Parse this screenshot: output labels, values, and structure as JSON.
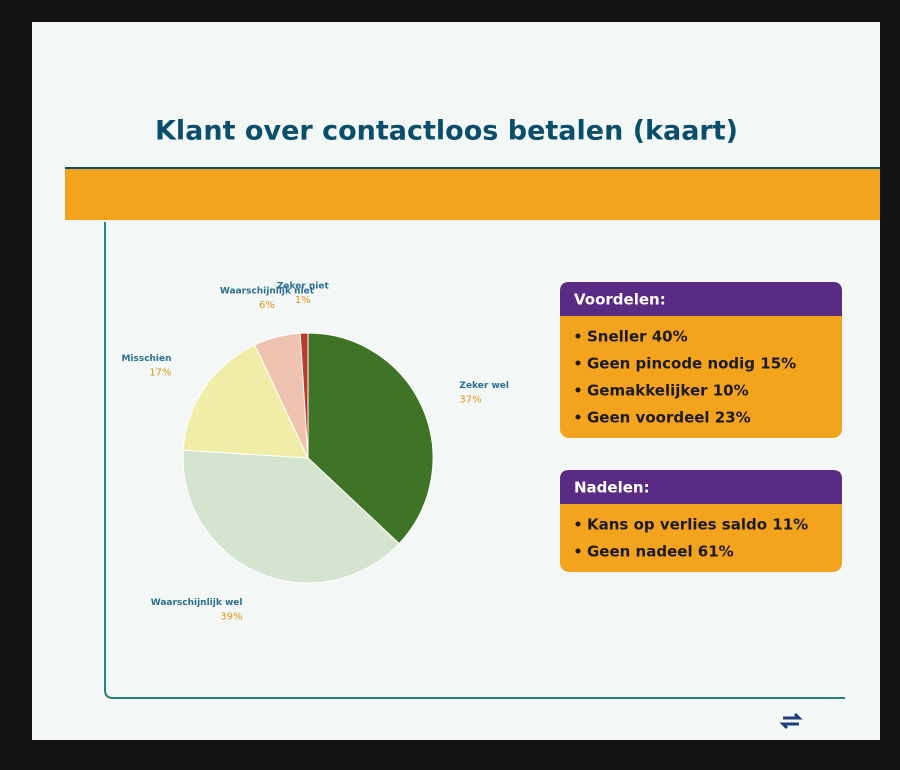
{
  "chart_data": {
    "type": "pie",
    "title": "Klant over contactloos betalen (kaart)",
    "categories": [
      "Zeker wel",
      "Waarschijnlijk wel",
      "Misschien",
      "Waarschijnlijk niet",
      "Zeker niet"
    ],
    "values": [
      37,
      39,
      17,
      6,
      1
    ],
    "value_labels": [
      "37%",
      "39%",
      "17%",
      "6%",
      "1%"
    ],
    "colors": [
      "#3f7426",
      "#d5e4cf",
      "#f0eea6",
      "#f0c3b1",
      "#c0392b"
    ]
  },
  "panels": [
    {
      "title": "Voordelen:",
      "items": [
        "Sneller 40%",
        "Geen pincode nodig 15%",
        "Gemakkelijker 10%",
        "Geen voordeel 23%"
      ]
    },
    {
      "title": "Nadelen:",
      "items": [
        "Kans op verlies saldo 11%",
        "Geen nadeel 61%"
      ]
    }
  ]
}
